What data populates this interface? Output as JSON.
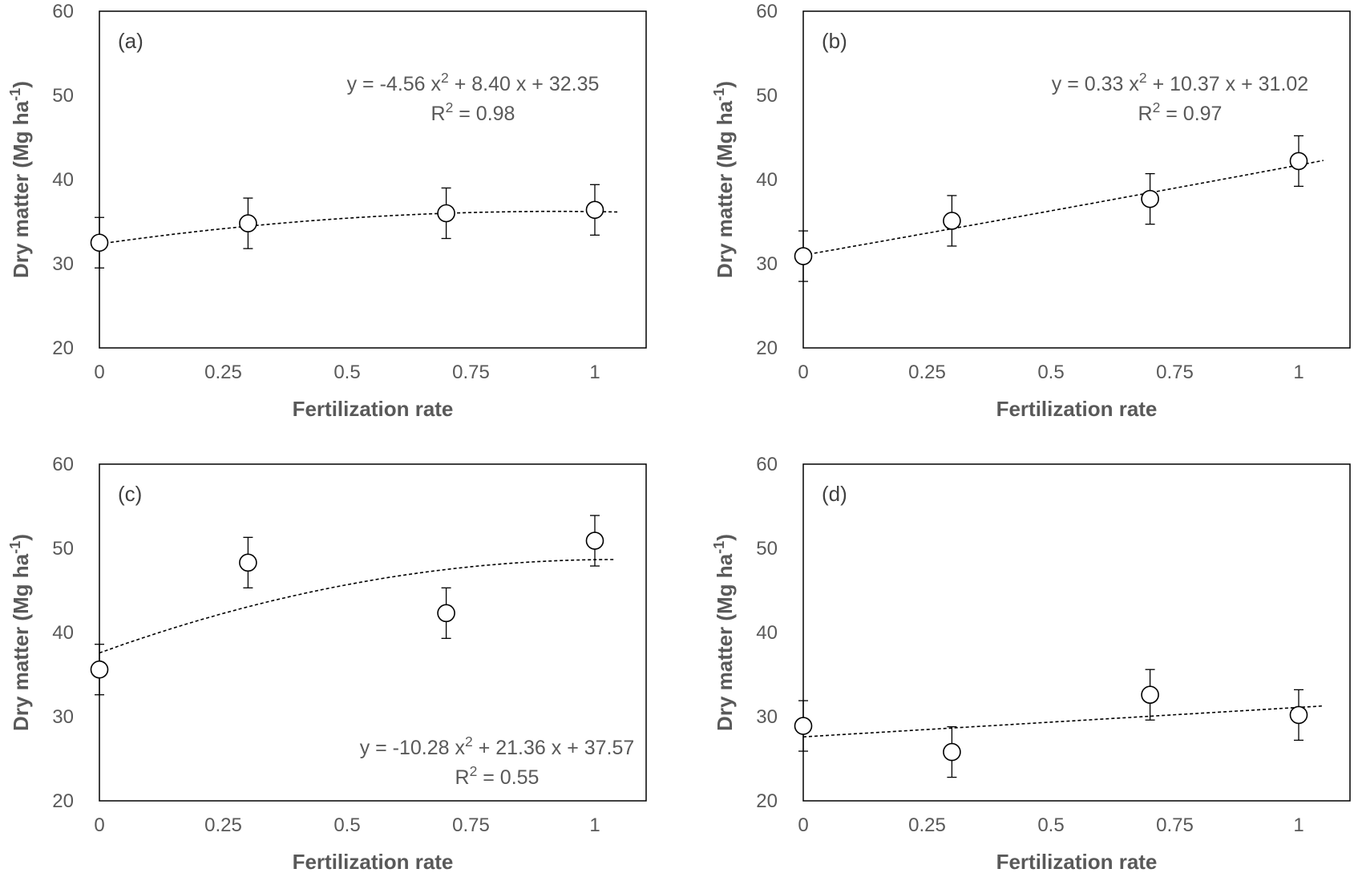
{
  "chart_data": [
    {
      "type": "scatter",
      "panel_label": "(a)",
      "xlabel": "Fertilization rate",
      "ylabel": "Dry matter (Mg ha⁻¹)",
      "xlim": [
        0,
        1.1
      ],
      "ylim": [
        20,
        60
      ],
      "x_ticks": [
        0,
        0.25,
        0.5,
        0.75,
        1
      ],
      "x_tick_labels": [
        "0",
        "0.25",
        "0.5",
        "0.75",
        "1"
      ],
      "y_ticks": [
        20,
        30,
        40,
        50,
        60
      ],
      "y_tick_labels": [
        "20",
        "30",
        "40",
        "50",
        "60"
      ],
      "points": [
        {
          "x": 0,
          "y": 32.5,
          "err": 3.0
        },
        {
          "x": 0.3,
          "y": 34.8,
          "err": 3.0
        },
        {
          "x": 0.7,
          "y": 36.0,
          "err": 3.0
        },
        {
          "x": 1,
          "y": 36.4,
          "err": 3.0
        }
      ],
      "trendline": {
        "type": "polynomial",
        "a": -4.56,
        "b": 8.4,
        "c": 32.35,
        "x_end": 1.05
      },
      "equation": "y = -4.56 x² + 8.40 x + 32.35",
      "r2": "R² = 0.98",
      "equation_position": "top-right"
    },
    {
      "type": "scatter",
      "panel_label": "(b)",
      "xlabel": "Fertilization rate",
      "ylabel": "Dry matter (Mg ha⁻¹)",
      "xlim": [
        0,
        1.1
      ],
      "ylim": [
        20,
        60
      ],
      "x_ticks": [
        0,
        0.25,
        0.5,
        0.75,
        1
      ],
      "x_tick_labels": [
        "0",
        "0.25",
        "0.5",
        "0.75",
        "1"
      ],
      "y_ticks": [
        20,
        30,
        40,
        50,
        60
      ],
      "y_tick_labels": [
        "20",
        "30",
        "40",
        "50",
        "60"
      ],
      "points": [
        {
          "x": 0,
          "y": 30.9,
          "err": 3.0
        },
        {
          "x": 0.3,
          "y": 35.1,
          "err": 3.0
        },
        {
          "x": 0.7,
          "y": 37.7,
          "err": 3.0
        },
        {
          "x": 1,
          "y": 42.2,
          "err": 3.0
        }
      ],
      "trendline": {
        "type": "polynomial",
        "a": 0.33,
        "b": 10.37,
        "c": 31.02,
        "x_end": 1.05
      },
      "equation": "y = 0.33 x² + 10.37 x + 31.02",
      "r2": "R² = 0.97",
      "equation_position": "top-right"
    },
    {
      "type": "scatter",
      "panel_label": "(c)",
      "xlabel": "Fertilization rate",
      "ylabel": "Dry matter (Mg ha⁻¹)",
      "xlim": [
        0,
        1.1
      ],
      "ylim": [
        20,
        60
      ],
      "x_ticks": [
        0,
        0.25,
        0.5,
        0.75,
        1
      ],
      "x_tick_labels": [
        "0",
        "0.25",
        "0.5",
        "0.75",
        "1"
      ],
      "y_ticks": [
        20,
        30,
        40,
        50,
        60
      ],
      "y_tick_labels": [
        "20",
        "30",
        "40",
        "50",
        "60"
      ],
      "points": [
        {
          "x": 0,
          "y": 35.6,
          "err": 3.0
        },
        {
          "x": 0.3,
          "y": 48.3,
          "err": 3.0
        },
        {
          "x": 0.7,
          "y": 42.3,
          "err": 3.0
        },
        {
          "x": 1,
          "y": 50.9,
          "err": 3.0
        }
      ],
      "trendline": {
        "type": "polynomial",
        "a": -10.28,
        "b": 21.36,
        "c": 37.57,
        "x_end": 1.04
      },
      "equation": "y = -10.28 x² + 21.36 x + 37.57",
      "r2": "R² = 0.55",
      "equation_position": "bottom-right"
    },
    {
      "type": "scatter",
      "panel_label": "(d)",
      "xlabel": "Fertilization rate",
      "ylabel": "Dry matter (Mg ha⁻¹)",
      "xlim": [
        0,
        1.1
      ],
      "ylim": [
        20,
        60
      ],
      "x_ticks": [
        0,
        0.25,
        0.5,
        0.75,
        1
      ],
      "x_tick_labels": [
        "0",
        "0.25",
        "0.5",
        "0.75",
        "1"
      ],
      "y_ticks": [
        20,
        30,
        40,
        50,
        60
      ],
      "y_tick_labels": [
        "20",
        "30",
        "40",
        "50",
        "60"
      ],
      "points": [
        {
          "x": 0,
          "y": 28.9,
          "err": 3.0
        },
        {
          "x": 0.3,
          "y": 25.8,
          "err": 3.0
        },
        {
          "x": 0.7,
          "y": 32.6,
          "err": 3.0
        },
        {
          "x": 1,
          "y": 30.2,
          "err": 3.0
        }
      ],
      "trendline": {
        "type": "polynomial",
        "a": 0,
        "b": 3.5,
        "c": 27.6,
        "x_end": 1.05
      },
      "equation": "",
      "r2": "",
      "equation_position": "none"
    }
  ]
}
